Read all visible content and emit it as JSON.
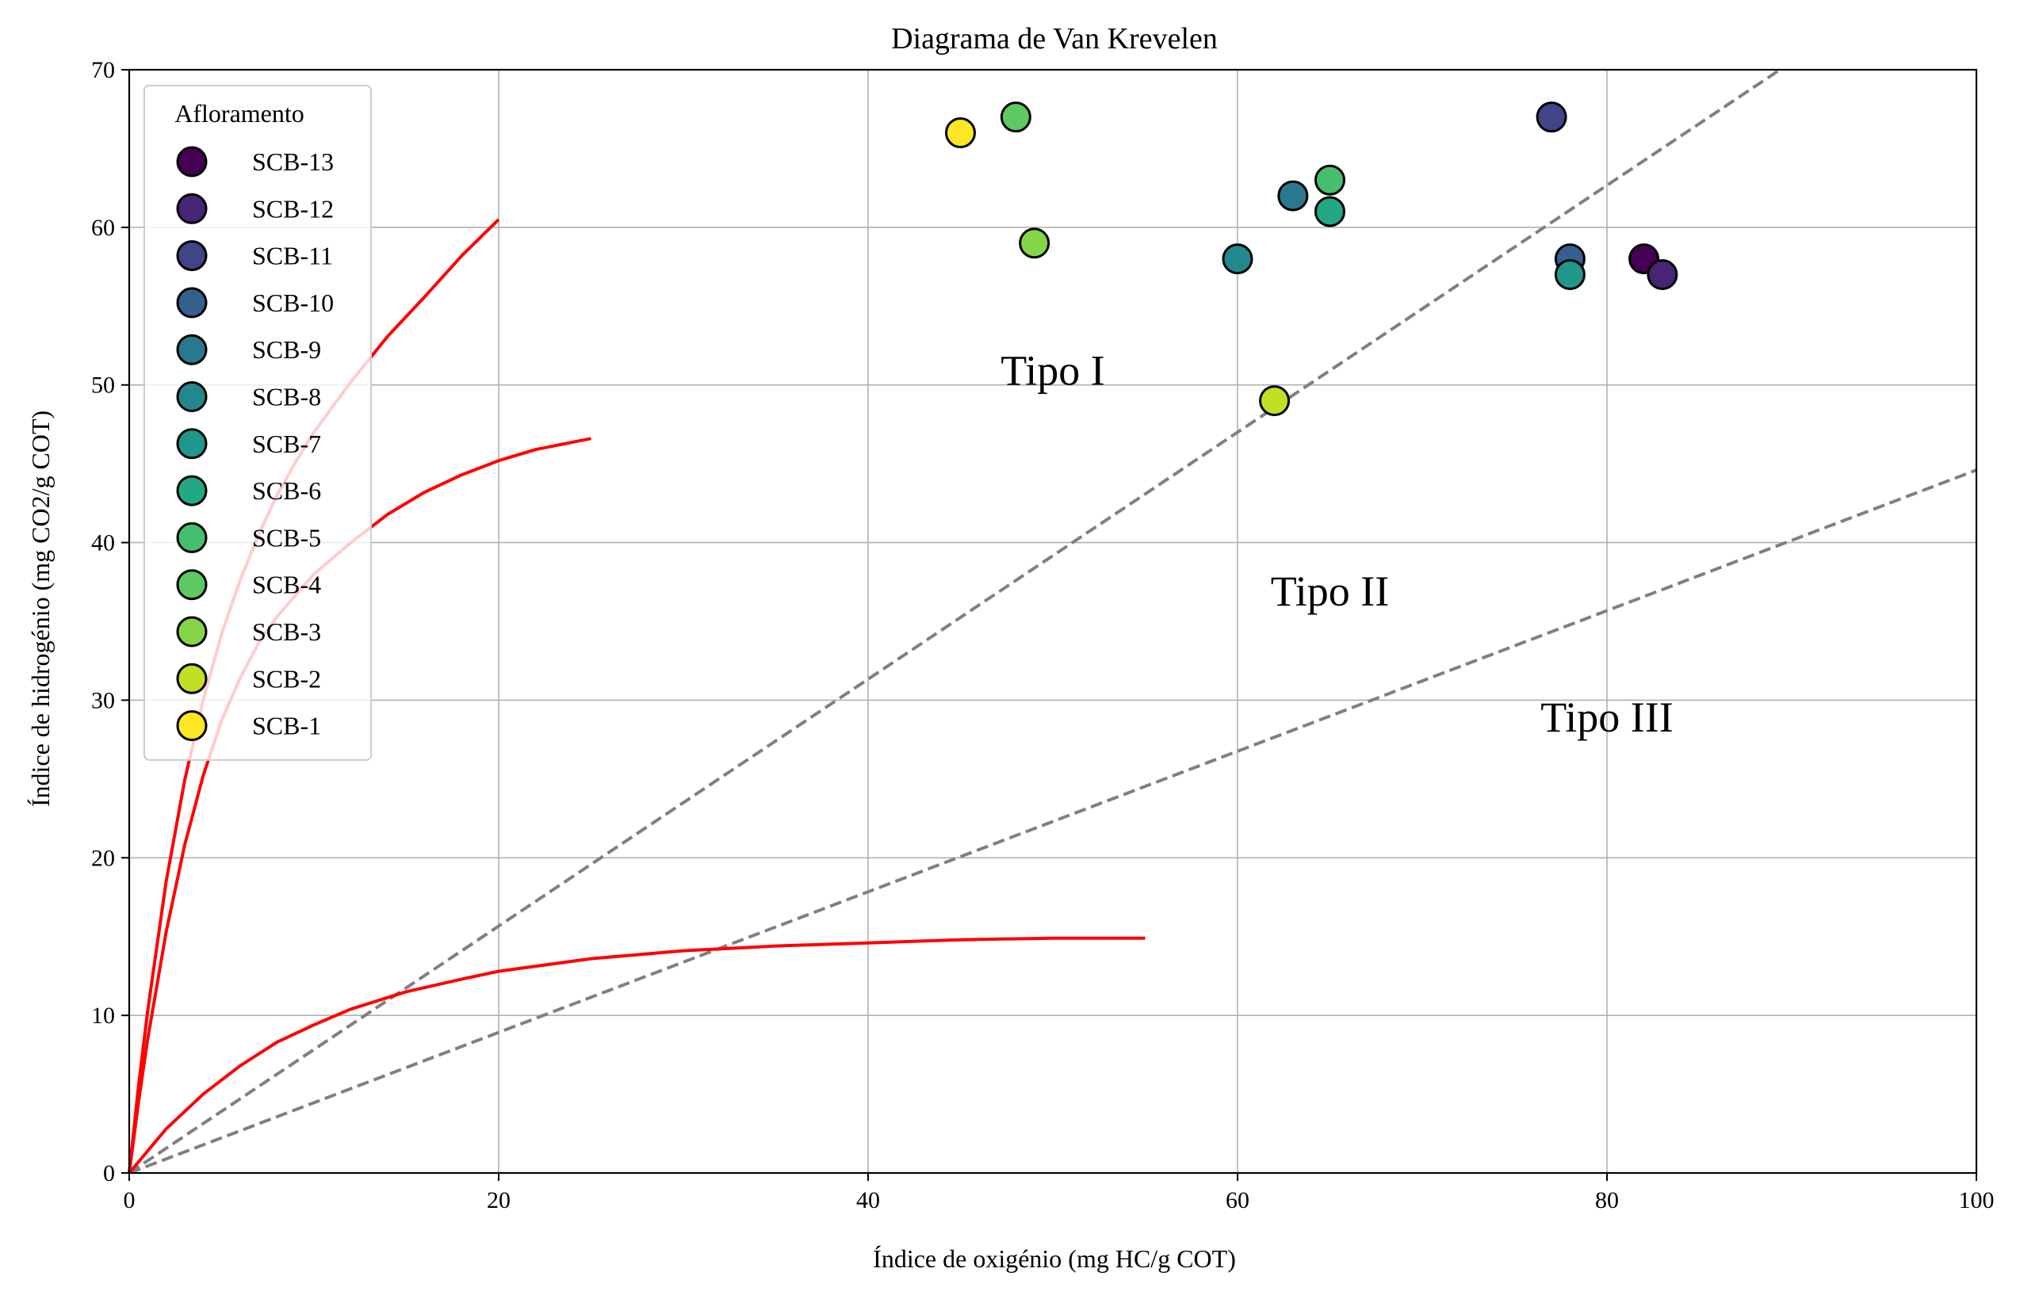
{
  "chart_data": {
    "type": "scatter",
    "title": "Diagrama de Van Krevelen",
    "xlabel": "Índice de oxigénio (mg HC/g COT)",
    "ylabel": "Índice de hidrogénio (mg CO2/g COT)",
    "xlim": [
      0,
      100
    ],
    "ylim": [
      0,
      70
    ],
    "xticks": [
      0,
      20,
      40,
      60,
      80,
      100
    ],
    "yticks": [
      0,
      10,
      20,
      30,
      40,
      50,
      60,
      70
    ],
    "grid": true,
    "legend": {
      "title": "Afloramento",
      "placement": "top-left"
    },
    "series": [
      {
        "name": "SCB-13",
        "color": "#440154",
        "points": [
          [
            82,
            58
          ]
        ]
      },
      {
        "name": "SCB-12",
        "color": "#482475",
        "points": [
          [
            83,
            57
          ]
        ]
      },
      {
        "name": "SCB-11",
        "color": "#414487",
        "points": [
          [
            77,
            67
          ]
        ]
      },
      {
        "name": "SCB-10",
        "color": "#355f8d",
        "points": [
          [
            78,
            58
          ]
        ]
      },
      {
        "name": "SCB-9",
        "color": "#2a788e",
        "points": [
          [
            63,
            62
          ]
        ]
      },
      {
        "name": "SCB-8",
        "color": "#23888e",
        "points": [
          [
            60,
            58
          ]
        ]
      },
      {
        "name": "SCB-7",
        "color": "#1f988b",
        "points": [
          [
            78,
            57
          ]
        ]
      },
      {
        "name": "SCB-6",
        "color": "#22a884",
        "points": [
          [
            65,
            61
          ]
        ]
      },
      {
        "name": "SCB-5",
        "color": "#44bf70",
        "points": [
          [
            65,
            63
          ]
        ]
      },
      {
        "name": "SCB-4",
        "color": "#5ec962",
        "points": [
          [
            48,
            67
          ]
        ]
      },
      {
        "name": "SCB-3",
        "color": "#86d549",
        "points": [
          [
            49,
            59
          ]
        ]
      },
      {
        "name": "SCB-2",
        "color": "#c2df23",
        "points": [
          [
            62,
            49
          ]
        ]
      },
      {
        "name": "SCB-1",
        "color": "#fde725",
        "points": [
          [
            45,
            66
          ]
        ]
      }
    ],
    "reference_lines": [
      {
        "style": "dashed",
        "color": "#808080",
        "points": [
          [
            0,
            0
          ],
          [
            90,
            70.5
          ]
        ]
      },
      {
        "style": "dashed",
        "color": "#808080",
        "points": [
          [
            0,
            0
          ],
          [
            100,
            44.6
          ]
        ]
      }
    ],
    "curves": [
      {
        "color": "#ff0000",
        "points": [
          [
            0,
            0
          ],
          [
            0.5,
            5.5
          ],
          [
            1,
            10.3
          ],
          [
            2,
            18.5
          ],
          [
            3,
            24.9
          ],
          [
            4,
            30.0
          ],
          [
            5,
            34.2
          ],
          [
            6,
            37.6
          ],
          [
            7,
            40.5
          ],
          [
            8,
            43.0
          ],
          [
            9,
            45.1
          ],
          [
            10,
            47.0
          ],
          [
            12,
            50.2
          ],
          [
            14,
            53.1
          ],
          [
            16,
            55.6
          ],
          [
            18,
            58.2
          ],
          [
            20,
            60.5
          ]
        ]
      },
      {
        "color": "#ff0000",
        "points": [
          [
            0,
            0
          ],
          [
            0.5,
            4.5
          ],
          [
            1,
            8.5
          ],
          [
            2,
            15.3
          ],
          [
            3,
            20.8
          ],
          [
            4,
            25.2
          ],
          [
            5,
            28.7
          ],
          [
            6,
            31.4
          ],
          [
            7,
            33.6
          ],
          [
            8,
            35.3
          ],
          [
            10,
            38.0
          ],
          [
            12,
            40.0
          ],
          [
            14,
            41.8
          ],
          [
            16,
            43.2
          ],
          [
            18,
            44.3
          ],
          [
            20,
            45.2
          ],
          [
            22,
            45.9
          ],
          [
            25,
            46.6
          ]
        ]
      },
      {
        "color": "#ff0000",
        "points": [
          [
            0,
            0
          ],
          [
            2,
            2.8
          ],
          [
            4,
            5.0
          ],
          [
            6,
            6.8
          ],
          [
            8,
            8.3
          ],
          [
            10,
            9.4
          ],
          [
            12,
            10.4
          ],
          [
            15,
            11.5
          ],
          [
            18,
            12.3
          ],
          [
            20,
            12.8
          ],
          [
            25,
            13.6
          ],
          [
            30,
            14.1
          ],
          [
            35,
            14.4
          ],
          [
            40,
            14.6
          ],
          [
            45,
            14.8
          ],
          [
            50,
            14.9
          ],
          [
            55,
            14.9
          ]
        ]
      }
    ],
    "annotations": [
      {
        "text": "Tipo I",
        "x": 50,
        "y": 50
      },
      {
        "text": "Tipo II",
        "x": 65,
        "y": 36
      },
      {
        "text": "Tipo III",
        "x": 80,
        "y": 28
      }
    ]
  }
}
